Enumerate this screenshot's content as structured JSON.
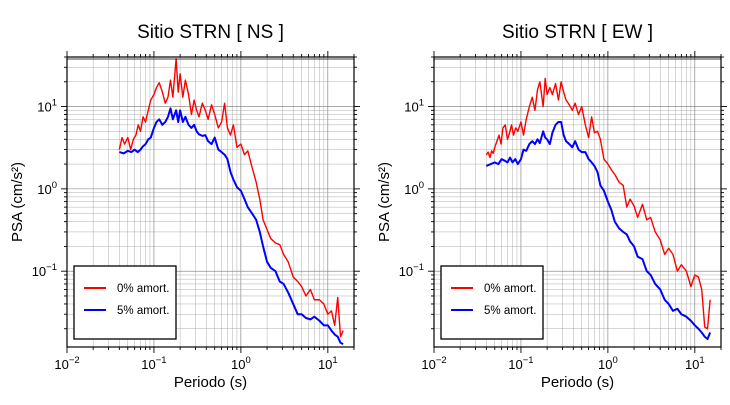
{
  "chart_data": [
    {
      "type": "line",
      "title": "Sitio STRN [ NS ]",
      "xlabel": "Periodo (s)",
      "ylabel": "PSA (cm/s²)",
      "xscale": "log",
      "yscale": "log",
      "xlim": [
        0.01,
        20
      ],
      "ylim": [
        0.012,
        40
      ],
      "grid": true,
      "legend_position": "bottom-left",
      "x_ticks": [
        {
          "value": 0.01,
          "base": "10",
          "exp": "−2"
        },
        {
          "value": 0.1,
          "base": "10",
          "exp": "−1"
        },
        {
          "value": 1,
          "base": "10",
          "exp": "0"
        },
        {
          "value": 10,
          "base": "10",
          "exp": "1"
        }
      ],
      "y_ticks": [
        {
          "value": 0.1,
          "base": "10",
          "exp": "−1"
        },
        {
          "value": 1,
          "base": "10",
          "exp": "0"
        },
        {
          "value": 10,
          "base": "10",
          "exp": "1"
        }
      ],
      "series": [
        {
          "name": "0% amort.",
          "color": "#ff0000",
          "x": [
            0.04,
            0.043,
            0.046,
            0.05,
            0.054,
            0.058,
            0.062,
            0.066,
            0.07,
            0.075,
            0.08,
            0.086,
            0.092,
            0.1,
            0.107,
            0.115,
            0.125,
            0.135,
            0.145,
            0.155,
            0.165,
            0.18,
            0.19,
            0.2,
            0.215,
            0.23,
            0.25,
            0.27,
            0.29,
            0.31,
            0.33,
            0.36,
            0.39,
            0.42,
            0.46,
            0.5,
            0.55,
            0.6,
            0.65,
            0.7,
            0.76,
            0.82,
            0.9,
            1.0,
            1.1,
            1.2,
            1.35,
            1.5,
            1.65,
            1.8,
            2.0,
            2.2,
            2.5,
            2.8,
            3.1,
            3.5,
            4.0,
            4.5,
            5.0,
            5.6,
            6.3,
            7.0,
            8.0,
            9.0,
            10.0,
            11.0,
            12.0,
            13.0,
            14.0,
            15.0
          ],
          "y": [
            3.0,
            4.2,
            3.5,
            4.2,
            3.0,
            4.0,
            4.5,
            6.0,
            5.0,
            7.5,
            6.5,
            9.0,
            12.0,
            14.0,
            17.0,
            19.5,
            15.0,
            11.0,
            13.0,
            21.0,
            13.0,
            38.0,
            15.0,
            25.0,
            13.0,
            21.0,
            14.0,
            8.0,
            12.0,
            9.0,
            7.5,
            11.0,
            9.0,
            7.0,
            10.5,
            8.0,
            5.5,
            6.5,
            11.0,
            5.5,
            4.5,
            6.0,
            3.2,
            3.5,
            2.6,
            2.9,
            1.8,
            1.2,
            0.75,
            0.42,
            0.32,
            0.25,
            0.22,
            0.21,
            0.16,
            0.13,
            0.085,
            0.075,
            0.065,
            0.05,
            0.06,
            0.045,
            0.045,
            0.04,
            0.03,
            0.033,
            0.022,
            0.048,
            0.016,
            0.019
          ]
        },
        {
          "name": "5% amort.",
          "color": "#0000ff",
          "x": [
            0.04,
            0.045,
            0.05,
            0.055,
            0.06,
            0.065,
            0.07,
            0.075,
            0.08,
            0.086,
            0.092,
            0.1,
            0.107,
            0.115,
            0.125,
            0.135,
            0.145,
            0.155,
            0.165,
            0.18,
            0.19,
            0.2,
            0.215,
            0.23,
            0.25,
            0.27,
            0.29,
            0.31,
            0.33,
            0.36,
            0.39,
            0.42,
            0.46,
            0.5,
            0.55,
            0.6,
            0.65,
            0.7,
            0.76,
            0.82,
            0.9,
            1.0,
            1.1,
            1.2,
            1.35,
            1.5,
            1.65,
            1.8,
            2.0,
            2.2,
            2.5,
            2.8,
            3.1,
            3.5,
            4.0,
            4.5,
            5.0,
            5.6,
            6.3,
            7.0,
            8.0,
            9.0,
            10.0,
            11.0,
            12.0,
            13.0,
            14.0,
            15.0
          ],
          "y": [
            2.8,
            2.7,
            2.9,
            2.8,
            3.0,
            2.8,
            3.0,
            3.3,
            3.5,
            4.0,
            4.2,
            5.5,
            6.5,
            7.0,
            6.0,
            6.5,
            7.5,
            9.5,
            7.0,
            9.0,
            6.5,
            9.0,
            6.5,
            7.5,
            6.0,
            5.5,
            6.0,
            5.0,
            4.6,
            4.4,
            4.5,
            3.8,
            3.5,
            4.2,
            3.0,
            2.8,
            2.6,
            2.3,
            1.6,
            1.3,
            1.05,
            0.95,
            0.75,
            0.6,
            0.5,
            0.42,
            0.3,
            0.2,
            0.13,
            0.11,
            0.1,
            0.075,
            0.07,
            0.055,
            0.04,
            0.03,
            0.03,
            0.027,
            0.026,
            0.028,
            0.025,
            0.022,
            0.022,
            0.019,
            0.017,
            0.016,
            0.0135,
            0.013
          ]
        }
      ]
    },
    {
      "type": "line",
      "title": "Sitio STRN [ EW ]",
      "xlabel": "Periodo (s)",
      "ylabel": "PSA (cm/s²)",
      "xscale": "log",
      "yscale": "log",
      "xlim": [
        0.01,
        20
      ],
      "ylim": [
        0.012,
        40
      ],
      "grid": true,
      "legend_position": "bottom-left",
      "x_ticks": [
        {
          "value": 0.01,
          "base": "10",
          "exp": "−2"
        },
        {
          "value": 0.1,
          "base": "10",
          "exp": "−1"
        },
        {
          "value": 1,
          "base": "10",
          "exp": "0"
        },
        {
          "value": 10,
          "base": "10",
          "exp": "1"
        }
      ],
      "y_ticks": [
        {
          "value": 0.1,
          "base": "10",
          "exp": "−1"
        },
        {
          "value": 1,
          "base": "10",
          "exp": "0"
        },
        {
          "value": 10,
          "base": "10",
          "exp": "1"
        }
      ],
      "series": [
        {
          "name": "0% amort.",
          "color": "#ff0000",
          "x": [
            0.04,
            0.042,
            0.044,
            0.046,
            0.048,
            0.05,
            0.053,
            0.056,
            0.059,
            0.062,
            0.066,
            0.07,
            0.074,
            0.078,
            0.082,
            0.087,
            0.092,
            0.1,
            0.107,
            0.115,
            0.125,
            0.135,
            0.145,
            0.155,
            0.165,
            0.18,
            0.19,
            0.2,
            0.215,
            0.23,
            0.25,
            0.27,
            0.29,
            0.31,
            0.33,
            0.36,
            0.39,
            0.42,
            0.46,
            0.5,
            0.55,
            0.6,
            0.65,
            0.7,
            0.76,
            0.82,
            0.9,
            1.0,
            1.1,
            1.2,
            1.35,
            1.5,
            1.65,
            1.8,
            2.0,
            2.2,
            2.5,
            2.8,
            3.1,
            3.5,
            4.0,
            4.5,
            5.0,
            5.6,
            6.3,
            7.0,
            8.0,
            9.0,
            10.0,
            11.0,
            12.0,
            13.0,
            14.0,
            15.0
          ],
          "y": [
            2.6,
            2.8,
            2.4,
            2.9,
            2.7,
            3.2,
            3.8,
            4.5,
            3.5,
            5.5,
            6.0,
            4.0,
            4.8,
            6.0,
            4.5,
            5.5,
            5.0,
            6.5,
            4.5,
            7.0,
            10.0,
            13.0,
            9.0,
            16.0,
            20.0,
            10.0,
            22.0,
            14.0,
            17.0,
            14.0,
            19.0,
            12.0,
            20.0,
            15.0,
            12.0,
            10.5,
            9.0,
            11.0,
            8.0,
            10.0,
            6.0,
            4.2,
            7.5,
            4.8,
            5.0,
            4.0,
            2.3,
            2.0,
            1.7,
            1.5,
            1.2,
            1.1,
            0.6,
            0.75,
            0.62,
            0.45,
            0.65,
            0.42,
            0.45,
            0.3,
            0.24,
            0.16,
            0.19,
            0.16,
            0.1,
            0.12,
            0.1,
            0.065,
            0.09,
            0.085,
            0.06,
            0.021,
            0.02,
            0.045
          ]
        },
        {
          "name": "5% amort.",
          "color": "#0000ff",
          "x": [
            0.04,
            0.045,
            0.05,
            0.055,
            0.06,
            0.065,
            0.07,
            0.075,
            0.08,
            0.086,
            0.092,
            0.1,
            0.107,
            0.115,
            0.125,
            0.135,
            0.145,
            0.155,
            0.165,
            0.18,
            0.19,
            0.2,
            0.215,
            0.23,
            0.25,
            0.27,
            0.29,
            0.31,
            0.33,
            0.36,
            0.39,
            0.42,
            0.46,
            0.5,
            0.55,
            0.6,
            0.65,
            0.7,
            0.76,
            0.82,
            0.9,
            1.0,
            1.1,
            1.2,
            1.35,
            1.5,
            1.65,
            1.8,
            2.0,
            2.2,
            2.5,
            2.8,
            3.1,
            3.5,
            4.0,
            4.5,
            5.0,
            5.6,
            6.3,
            7.0,
            8.0,
            9.0,
            10.0,
            11.0,
            12.0,
            13.0,
            14.0,
            15.0
          ],
          "y": [
            1.9,
            2.0,
            2.1,
            2.0,
            2.3,
            2.2,
            2.1,
            2.4,
            2.1,
            2.3,
            2.0,
            2.3,
            3.0,
            2.9,
            3.5,
            3.8,
            3.5,
            4.0,
            3.6,
            5.0,
            4.2,
            4.0,
            3.5,
            4.8,
            6.0,
            6.5,
            6.5,
            4.5,
            3.8,
            3.5,
            3.2,
            3.8,
            3.0,
            2.8,
            2.8,
            2.3,
            2.1,
            1.9,
            1.6,
            1.1,
            0.95,
            0.7,
            0.55,
            0.4,
            0.33,
            0.3,
            0.28,
            0.23,
            0.2,
            0.15,
            0.14,
            0.1,
            0.09,
            0.07,
            0.06,
            0.045,
            0.04,
            0.033,
            0.035,
            0.03,
            0.028,
            0.025,
            0.022,
            0.02,
            0.018,
            0.016,
            0.015,
            0.018
          ]
        }
      ]
    }
  ]
}
